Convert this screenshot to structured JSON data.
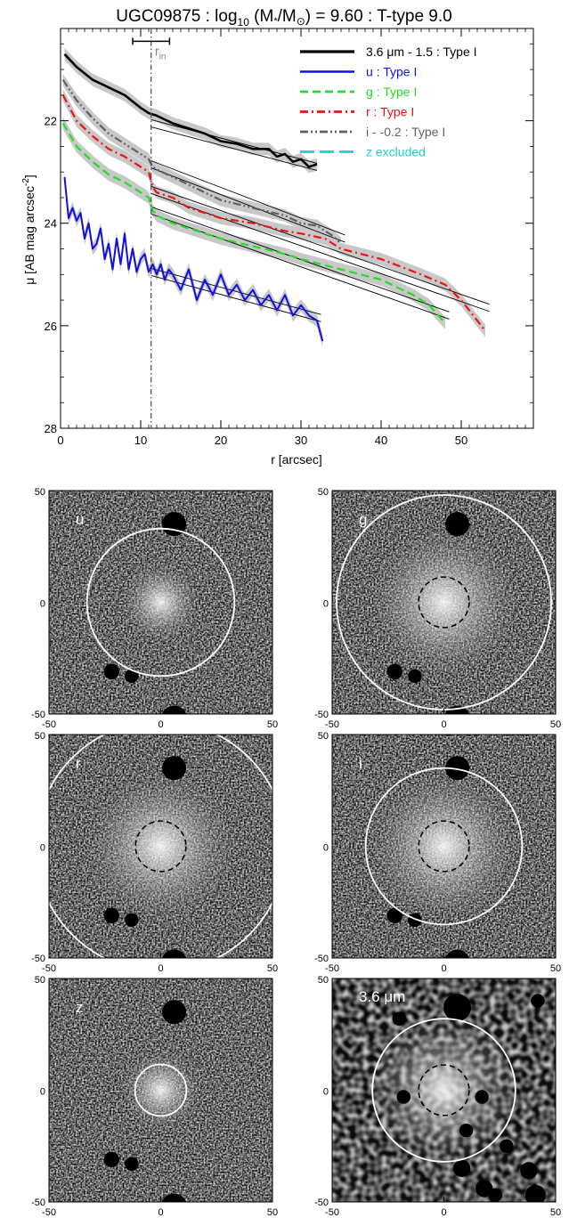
{
  "chart_data": [
    {
      "type": "line",
      "title_main": "UGC09875 : log",
      "title_sub": "10",
      "title_mid": " (M",
      "title_star": "*",
      "title_slash": "/M",
      "title_sun": "⊙",
      "title_tail": ") = 9.60 : T-type 9.0",
      "xlabel": "r [arcsec]",
      "ylabel_main": "μ [AB mag arcsec",
      "ylabel_sup": "-2",
      "ylabel_close": "]",
      "xlim": [
        0,
        59
      ],
      "ylim": [
        28,
        20.2
      ],
      "y_reversed": true,
      "xticks": [
        0,
        10,
        20,
        30,
        40,
        50
      ],
      "xtick_labels": [
        "0",
        "10",
        "20",
        "30",
        "40",
        "50"
      ],
      "yticks": [
        22,
        24,
        26,
        28
      ],
      "ytick_labels": [
        "22",
        "24",
        "26",
        "28"
      ],
      "rin": 11.3,
      "rin_label": "r",
      "rin_sub": "in",
      "rin_errorbar": [
        9,
        13.6
      ],
      "rin_errorbar_y": 20.45,
      "legend_position": "top-right",
      "series": [
        {
          "name": "3.6 μm - 1.5 : Type I",
          "color": "#000000",
          "dash": "solid",
          "width": 2.6,
          "x": [
            0.5,
            2,
            4,
            6,
            8,
            10,
            11,
            12,
            14,
            16,
            18,
            20,
            22,
            24,
            26,
            27,
            28,
            29,
            30,
            31,
            32
          ],
          "y": [
            20.7,
            20.95,
            21.2,
            21.35,
            21.5,
            21.75,
            21.85,
            21.9,
            22.05,
            22.15,
            22.25,
            22.4,
            22.45,
            22.55,
            22.55,
            22.7,
            22.65,
            22.8,
            22.75,
            22.9,
            22.85
          ],
          "fit_x": [
            11.3,
            32
          ],
          "fit_y": [
            22.05,
            22.9
          ]
        },
        {
          "name": "u : Type I",
          "color": "#1010e0",
          "dash": "solid",
          "width": 2,
          "x": [
            0.5,
            1,
            1.5,
            2,
            2.5,
            3,
            3.5,
            4,
            4.5,
            5,
            5.5,
            6,
            6.5,
            7,
            7.5,
            8,
            8.5,
            9,
            9.5,
            10,
            10.5,
            11,
            11.5,
            12,
            12.5,
            13,
            13.5,
            14,
            15,
            16,
            17,
            18,
            19,
            20,
            21,
            22,
            23,
            24,
            25,
            26,
            27,
            28,
            29,
            30,
            31,
            32,
            32.7
          ],
          "y": [
            23.1,
            23.9,
            23.7,
            23.95,
            23.8,
            24.3,
            24.0,
            24.5,
            24.4,
            24.1,
            24.7,
            24.4,
            24.9,
            24.3,
            24.8,
            24.2,
            24.9,
            24.5,
            24.95,
            24.7,
            24.6,
            24.95,
            24.8,
            25.0,
            24.8,
            25.1,
            24.9,
            25.0,
            25.3,
            24.9,
            25.5,
            25.1,
            25.4,
            25.0,
            25.4,
            25.2,
            25.5,
            25.3,
            25.6,
            25.4,
            25.7,
            25.4,
            25.8,
            25.6,
            25.8,
            25.9,
            26.3
          ],
          "fit_x": [
            11.3,
            32.5
          ],
          "fit_y": [
            24.95,
            25.85
          ]
        },
        {
          "name": "g : Type I",
          "color": "#22dd22",
          "dash": "dash",
          "width": 2.2,
          "x": [
            0.3,
            2,
            4,
            6,
            8,
            10,
            11,
            11.5,
            12,
            14,
            16,
            18,
            20,
            24,
            28,
            30,
            35,
            40,
            44,
            46,
            48
          ],
          "y": [
            22.05,
            22.5,
            22.8,
            23.05,
            23.2,
            23.4,
            23.5,
            23.75,
            23.85,
            24.0,
            24.1,
            24.2,
            24.3,
            24.45,
            24.6,
            24.7,
            24.9,
            25.1,
            25.4,
            25.6,
            25.95
          ],
          "fit_x": [
            11.3,
            48.5
          ],
          "fit_y": [
            23.75,
            25.8
          ]
        },
        {
          "name": "r : Type I",
          "color": "#ee1111",
          "dash": "dashdot",
          "width": 2.2,
          "x": [
            0.3,
            2,
            4,
            6,
            8,
            10,
            11,
            11.5,
            12,
            14,
            16,
            18,
            20,
            24,
            28,
            30,
            33,
            35,
            40,
            45,
            48,
            50,
            53
          ],
          "y": [
            21.5,
            22.0,
            22.3,
            22.55,
            22.7,
            22.9,
            23.0,
            23.3,
            23.4,
            23.5,
            23.7,
            23.8,
            23.9,
            24.0,
            24.15,
            24.2,
            24.3,
            24.5,
            24.7,
            25.0,
            25.2,
            25.5,
            26.1
          ],
          "fit_x": [
            11.3,
            53.5
          ],
          "fit_y": [
            23.35,
            25.65
          ]
        },
        {
          "name": "i - -0.2 : Type I",
          "color": "#606060",
          "dash": "dashdotdot",
          "width": 2.2,
          "x": [
            0.3,
            2,
            4,
            6,
            8,
            10,
            11,
            11.5,
            12,
            14,
            16,
            18,
            20,
            24,
            28,
            30,
            32,
            34,
            35
          ],
          "y": [
            21.2,
            21.6,
            21.95,
            22.25,
            22.45,
            22.65,
            22.75,
            22.9,
            22.95,
            23.1,
            23.25,
            23.4,
            23.55,
            23.7,
            23.85,
            24.0,
            24.05,
            24.25,
            24.4
          ],
          "fit_x": [
            11.3,
            35.5
          ],
          "fit_y": [
            22.85,
            24.3
          ]
        },
        {
          "name": "z excluded",
          "color": "#22cccc",
          "dash": "longdash",
          "width": 2.2,
          "x": [],
          "y": []
        }
      ]
    },
    {
      "type": "image-panels",
      "tick_labels": [
        "-50",
        "0",
        "50"
      ],
      "panels": [
        {
          "label": "u",
          "outer_r": 33,
          "inner_r": 0
        },
        {
          "label": "g",
          "outer_r": 48,
          "inner_r": 11.3
        },
        {
          "label": "r",
          "outer_r": 56,
          "inner_r": 11.3
        },
        {
          "label": "i",
          "outer_r": 35,
          "inner_r": 11.3
        },
        {
          "label": "z",
          "outer_r": 11.5,
          "inner_r": 0
        },
        {
          "label": "3.6 μm",
          "outer_r": 32,
          "inner_r": 11.3
        }
      ]
    }
  ]
}
